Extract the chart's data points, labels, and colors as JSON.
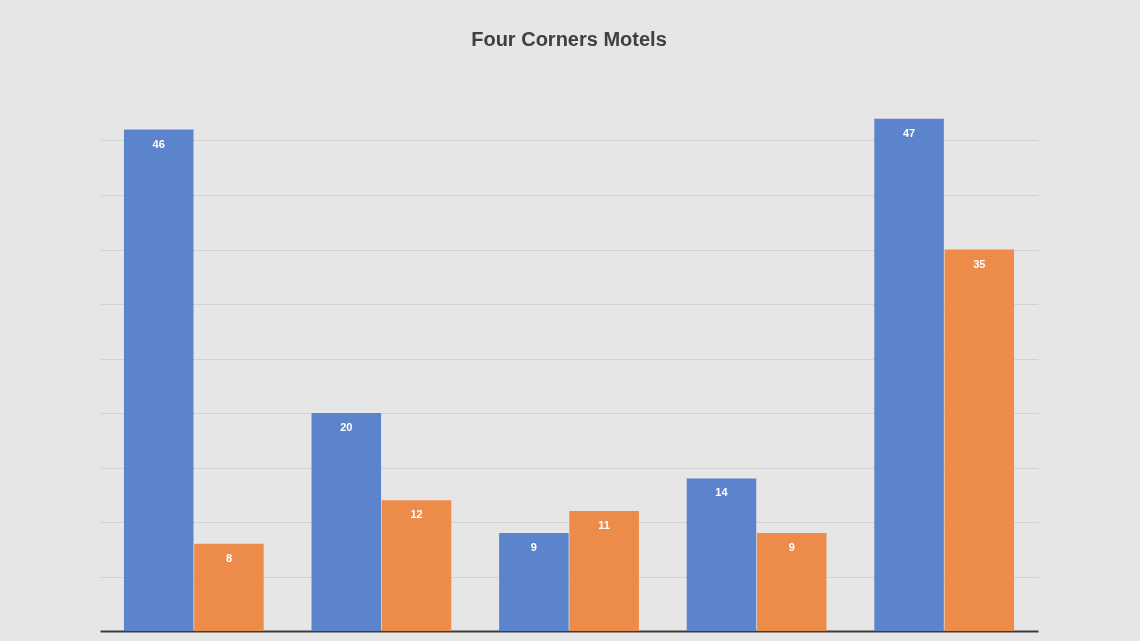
{
  "chart_data": {
    "type": "bar",
    "title": "Four Corners Motels",
    "categories": [
      null,
      null,
      null,
      null,
      null
    ],
    "series": [
      {
        "color": "#5b84cc",
        "values": [
          46,
          20,
          9,
          14,
          47
        ]
      },
      {
        "color": "#ed8b4b",
        "values": [
          8,
          12,
          11,
          9,
          35
        ]
      }
    ],
    "yticks": [
      0,
      5,
      10,
      15,
      20,
      25,
      30,
      35,
      40,
      45
    ],
    "grid": "y",
    "tick_labels": false,
    "data_labels": true
  }
}
